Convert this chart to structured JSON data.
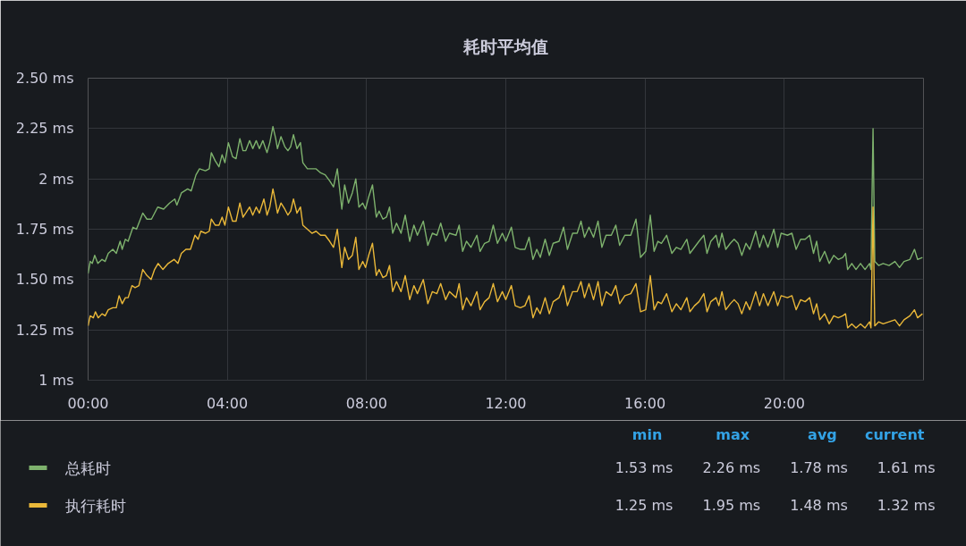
{
  "chart_data": {
    "type": "line",
    "title": "耗时平均值",
    "xlim": [
      0,
      24
    ],
    "xticks": [
      {
        "value": 0,
        "label": "00:00"
      },
      {
        "value": 4,
        "label": "04:00"
      },
      {
        "value": 8,
        "label": "08:00"
      },
      {
        "value": 12,
        "label": "12:00"
      },
      {
        "value": 16,
        "label": "16:00"
      },
      {
        "value": 20,
        "label": "20:00"
      }
    ],
    "ylim": [
      1,
      2.5
    ],
    "yticks": [
      {
        "value": 1,
        "label": "1 ms"
      },
      {
        "value": 1.25,
        "label": "1.25 ms"
      },
      {
        "value": 1.5,
        "label": "1.50 ms"
      },
      {
        "value": 1.75,
        "label": "1.75 ms"
      },
      {
        "value": 2,
        "label": "2 ms"
      },
      {
        "value": 2.25,
        "label": "2.25 ms"
      },
      {
        "value": 2.5,
        "label": "2.50 ms"
      }
    ],
    "grid": true,
    "legend": "bottom",
    "series": [
      {
        "name": "总耗时",
        "color": "#7eb26d",
        "x": [
          0.0,
          0.06,
          0.12,
          0.19,
          0.28,
          0.4,
          0.49,
          0.58,
          0.71,
          0.81,
          0.92,
          0.98,
          1.07,
          1.15,
          1.29,
          1.39,
          1.57,
          1.69,
          1.82,
          2.0,
          2.17,
          2.34,
          2.49,
          2.55,
          2.68,
          2.86,
          2.96,
          3.1,
          3.2,
          3.37,
          3.48,
          3.54,
          3.65,
          3.76,
          3.85,
          3.93,
          4.03,
          4.15,
          4.25,
          4.36,
          4.45,
          4.53,
          4.64,
          4.73,
          4.83,
          4.92,
          5.02,
          5.14,
          5.22,
          5.31,
          5.39,
          5.44,
          5.54,
          5.65,
          5.74,
          5.82,
          5.9,
          6.0,
          6.1,
          6.17,
          6.3,
          6.43,
          6.55,
          6.68,
          6.81,
          6.94,
          7.05,
          7.16,
          7.29,
          7.37,
          7.48,
          7.59,
          7.69,
          7.78,
          7.89,
          7.97,
          8.06,
          8.17,
          8.28,
          8.36,
          8.47,
          8.57,
          8.66,
          8.75,
          8.86,
          8.99,
          9.11,
          9.24,
          9.36,
          9.46,
          9.63,
          9.76,
          9.89,
          10.02,
          10.13,
          10.27,
          10.38,
          10.57,
          10.66,
          10.76,
          10.87,
          11.0,
          11.17,
          11.26,
          11.39,
          11.52,
          11.64,
          11.76,
          11.9,
          12.0,
          12.16,
          12.27,
          12.42,
          12.55,
          12.67,
          12.78,
          12.89,
          12.99,
          13.13,
          13.25,
          13.36,
          13.53,
          13.66,
          13.77,
          13.92,
          14.05,
          14.16,
          14.26,
          14.39,
          14.52,
          14.65,
          14.76,
          14.88,
          15.03,
          15.16,
          15.27,
          15.42,
          15.59,
          15.74,
          15.87,
          16.02,
          16.15,
          16.26,
          16.37,
          16.47,
          16.62,
          16.77,
          16.9,
          17.03,
          17.2,
          17.29,
          17.42,
          17.55,
          17.69,
          17.78,
          17.89,
          18.04,
          18.12,
          18.21,
          18.32,
          18.45,
          18.56,
          18.67,
          18.78,
          18.9,
          19.01,
          19.18,
          19.29,
          19.4,
          19.53,
          19.7,
          19.81,
          19.91,
          20.09,
          20.22,
          20.34,
          20.47,
          20.6,
          20.73,
          20.84,
          20.93,
          21.02,
          21.16,
          21.29,
          21.42,
          21.55,
          21.68,
          21.76,
          21.82,
          21.94,
          22.06,
          22.19,
          22.32,
          22.45,
          22.49,
          22.55,
          22.6,
          22.71,
          22.84,
          23.01,
          23.18,
          23.31,
          23.44,
          23.61,
          23.74,
          23.83,
          23.97
        ],
        "values": [
          1.53,
          1.59,
          1.58,
          1.62,
          1.58,
          1.6,
          1.59,
          1.63,
          1.65,
          1.63,
          1.69,
          1.65,
          1.7,
          1.69,
          1.76,
          1.75,
          1.83,
          1.8,
          1.8,
          1.86,
          1.85,
          1.88,
          1.9,
          1.87,
          1.93,
          1.95,
          1.94,
          2.02,
          2.05,
          2.04,
          2.05,
          2.13,
          2.09,
          2.06,
          2.12,
          2.08,
          2.18,
          2.11,
          2.1,
          2.2,
          2.14,
          2.14,
          2.19,
          2.15,
          2.19,
          2.15,
          2.19,
          2.13,
          2.18,
          2.26,
          2.2,
          2.15,
          2.21,
          2.16,
          2.14,
          2.16,
          2.22,
          2.15,
          2.18,
          2.08,
          2.05,
          2.05,
          2.05,
          2.03,
          2.02,
          1.99,
          1.96,
          2.05,
          1.85,
          1.97,
          1.88,
          1.93,
          2.0,
          1.86,
          1.88,
          1.85,
          1.91,
          1.97,
          1.81,
          1.84,
          1.8,
          1.81,
          1.86,
          1.73,
          1.78,
          1.73,
          1.82,
          1.69,
          1.77,
          1.72,
          1.79,
          1.67,
          1.73,
          1.72,
          1.78,
          1.69,
          1.73,
          1.72,
          1.77,
          1.64,
          1.69,
          1.66,
          1.72,
          1.64,
          1.68,
          1.69,
          1.77,
          1.68,
          1.73,
          1.69,
          1.76,
          1.66,
          1.65,
          1.65,
          1.71,
          1.6,
          1.65,
          1.61,
          1.7,
          1.62,
          1.68,
          1.69,
          1.76,
          1.65,
          1.73,
          1.73,
          1.79,
          1.71,
          1.76,
          1.71,
          1.79,
          1.66,
          1.72,
          1.72,
          1.77,
          1.67,
          1.72,
          1.72,
          1.8,
          1.61,
          1.64,
          1.82,
          1.64,
          1.69,
          1.68,
          1.72,
          1.63,
          1.66,
          1.65,
          1.7,
          1.63,
          1.66,
          1.69,
          1.72,
          1.63,
          1.69,
          1.72,
          1.66,
          1.73,
          1.65,
          1.68,
          1.7,
          1.68,
          1.62,
          1.68,
          1.65,
          1.74,
          1.66,
          1.72,
          1.66,
          1.75,
          1.66,
          1.73,
          1.72,
          1.73,
          1.65,
          1.7,
          1.7,
          1.72,
          1.63,
          1.69,
          1.59,
          1.64,
          1.58,
          1.62,
          1.6,
          1.61,
          1.63,
          1.55,
          1.58,
          1.55,
          1.58,
          1.55,
          1.58,
          1.55,
          2.25,
          1.59,
          1.57,
          1.58,
          1.57,
          1.59,
          1.56,
          1.59,
          1.6,
          1.65,
          1.6,
          1.61
        ]
      },
      {
        "name": "执行耗时",
        "color": "#eab839",
        "x": [
          0.0,
          0.06,
          0.15,
          0.21,
          0.29,
          0.4,
          0.49,
          0.58,
          0.71,
          0.81,
          0.89,
          0.98,
          1.07,
          1.15,
          1.26,
          1.35,
          1.46,
          1.57,
          1.69,
          1.81,
          1.91,
          2.01,
          2.15,
          2.3,
          2.47,
          2.58,
          2.68,
          2.81,
          2.94,
          3.07,
          3.16,
          3.24,
          3.37,
          3.48,
          3.54,
          3.65,
          3.76,
          3.85,
          3.93,
          4.03,
          4.15,
          4.25,
          4.36,
          4.45,
          4.53,
          4.64,
          4.73,
          4.83,
          4.92,
          5.05,
          5.14,
          5.22,
          5.31,
          5.39,
          5.44,
          5.54,
          5.65,
          5.74,
          5.82,
          5.9,
          6.0,
          6.1,
          6.17,
          6.3,
          6.43,
          6.55,
          6.68,
          6.81,
          6.94,
          7.05,
          7.16,
          7.29,
          7.37,
          7.48,
          7.59,
          7.69,
          7.78,
          7.89,
          7.97,
          8.06,
          8.17,
          8.28,
          8.36,
          8.47,
          8.57,
          8.66,
          8.75,
          8.86,
          8.99,
          9.11,
          9.24,
          9.36,
          9.46,
          9.63,
          9.76,
          9.89,
          10.02,
          10.13,
          10.27,
          10.38,
          10.57,
          10.66,
          10.76,
          10.87,
          11.0,
          11.17,
          11.26,
          11.39,
          11.52,
          11.64,
          11.76,
          11.9,
          12.0,
          12.16,
          12.27,
          12.42,
          12.55,
          12.67,
          12.78,
          12.89,
          12.99,
          13.13,
          13.25,
          13.36,
          13.53,
          13.66,
          13.77,
          13.92,
          14.05,
          14.16,
          14.26,
          14.39,
          14.52,
          14.65,
          14.76,
          14.88,
          15.03,
          15.16,
          15.27,
          15.42,
          15.59,
          15.74,
          15.87,
          16.02,
          16.15,
          16.26,
          16.37,
          16.47,
          16.62,
          16.77,
          16.9,
          17.03,
          17.2,
          17.29,
          17.42,
          17.55,
          17.69,
          17.78,
          17.89,
          18.04,
          18.12,
          18.21,
          18.32,
          18.45,
          18.56,
          18.67,
          18.78,
          18.9,
          19.01,
          19.18,
          19.29,
          19.4,
          19.53,
          19.7,
          19.81,
          19.91,
          20.09,
          20.22,
          20.34,
          20.47,
          20.6,
          20.73,
          20.84,
          20.93,
          21.02,
          21.16,
          21.29,
          21.42,
          21.55,
          21.68,
          21.76,
          21.82,
          21.94,
          22.06,
          22.19,
          22.32,
          22.45,
          22.49,
          22.55,
          22.6,
          22.71,
          22.84,
          23.01,
          23.18,
          23.31,
          23.44,
          23.61,
          23.74,
          23.83,
          23.97
        ],
        "values": [
          1.27,
          1.32,
          1.31,
          1.34,
          1.31,
          1.33,
          1.32,
          1.35,
          1.36,
          1.36,
          1.42,
          1.38,
          1.41,
          1.41,
          1.47,
          1.46,
          1.47,
          1.55,
          1.52,
          1.5,
          1.55,
          1.58,
          1.55,
          1.58,
          1.6,
          1.58,
          1.63,
          1.65,
          1.65,
          1.72,
          1.7,
          1.74,
          1.73,
          1.74,
          1.8,
          1.77,
          1.77,
          1.81,
          1.77,
          1.86,
          1.79,
          1.79,
          1.88,
          1.81,
          1.83,
          1.86,
          1.82,
          1.86,
          1.83,
          1.9,
          1.82,
          1.86,
          1.95,
          1.88,
          1.83,
          1.88,
          1.85,
          1.82,
          1.84,
          1.9,
          1.83,
          1.86,
          1.77,
          1.75,
          1.73,
          1.74,
          1.72,
          1.72,
          1.69,
          1.66,
          1.75,
          1.56,
          1.66,
          1.6,
          1.62,
          1.71,
          1.55,
          1.59,
          1.56,
          1.62,
          1.68,
          1.52,
          1.55,
          1.51,
          1.52,
          1.57,
          1.44,
          1.49,
          1.44,
          1.52,
          1.4,
          1.47,
          1.43,
          1.5,
          1.38,
          1.44,
          1.43,
          1.48,
          1.4,
          1.44,
          1.41,
          1.48,
          1.35,
          1.41,
          1.37,
          1.44,
          1.35,
          1.39,
          1.41,
          1.48,
          1.39,
          1.44,
          1.4,
          1.47,
          1.37,
          1.36,
          1.37,
          1.42,
          1.31,
          1.36,
          1.33,
          1.41,
          1.33,
          1.39,
          1.41,
          1.47,
          1.37,
          1.44,
          1.44,
          1.49,
          1.41,
          1.48,
          1.4,
          1.49,
          1.37,
          1.44,
          1.42,
          1.47,
          1.38,
          1.42,
          1.43,
          1.48,
          1.34,
          1.35,
          1.52,
          1.35,
          1.39,
          1.38,
          1.43,
          1.34,
          1.38,
          1.35,
          1.41,
          1.34,
          1.37,
          1.39,
          1.43,
          1.34,
          1.39,
          1.41,
          1.37,
          1.44,
          1.35,
          1.38,
          1.4,
          1.38,
          1.33,
          1.39,
          1.35,
          1.44,
          1.37,
          1.43,
          1.37,
          1.44,
          1.37,
          1.42,
          1.41,
          1.42,
          1.35,
          1.4,
          1.39,
          1.41,
          1.33,
          1.38,
          1.3,
          1.33,
          1.28,
          1.32,
          1.31,
          1.32,
          1.33,
          1.26,
          1.28,
          1.26,
          1.28,
          1.26,
          1.29,
          1.26,
          1.86,
          1.27,
          1.29,
          1.28,
          1.29,
          1.3,
          1.27,
          1.3,
          1.32,
          1.35,
          1.31,
          1.33
        ]
      }
    ],
    "annotations": [
      "min",
      "max",
      "avg",
      "current",
      "1.53 ms",
      "2.26 ms",
      "1.78 ms",
      "1.61 ms",
      "1.25 ms",
      "1.95 ms",
      "1.48 ms",
      "1.32 ms"
    ]
  }
}
